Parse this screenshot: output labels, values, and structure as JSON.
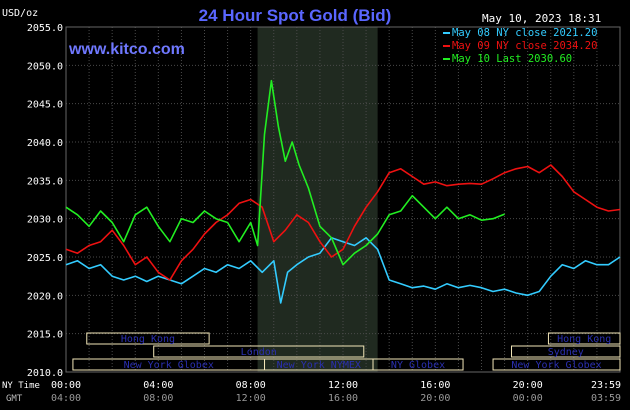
{
  "header": {
    "title": "24 Hour Spot Gold (Bid)",
    "timestamp": "May 10, 2023 18:31",
    "site": "www.kitco.com"
  },
  "colors": {
    "background": "#000000",
    "grid": "#4a4a4a",
    "title": "#5a66ff",
    "site": "#6f78ff",
    "text": "#ffffff",
    "session_box": "#f2e6b8",
    "session_text": "#2a2fb0",
    "highlight": "#202a20"
  },
  "legend": [
    {
      "label": "May 08 NY close 2021.20",
      "color": "#33ccff"
    },
    {
      "label": "May 09 NY close 2034.20",
      "color": "#ee1111"
    },
    {
      "label": "May 10 Last 2030.60",
      "color": "#22ee22"
    }
  ],
  "sessions": [
    {
      "label": "Hong Kong",
      "row": 0,
      "start": 0.9,
      "end": 6.2
    },
    {
      "label": "London",
      "row": 1,
      "start": 3.8,
      "end": 12.9
    },
    {
      "label": "New York Globex",
      "row": 2,
      "start": 0.3,
      "end": 8.6
    },
    {
      "label": "New York NYMEX",
      "row": 2,
      "start": 8.6,
      "end": 13.3
    },
    {
      "label": "NY Globex",
      "row": 2,
      "start": 13.3,
      "end": 17.2
    },
    {
      "label": "Hong Kong",
      "row": 0,
      "start": 20.9,
      "end": 24.0
    },
    {
      "label": "Sydney",
      "row": 1,
      "start": 19.3,
      "end": 24.0
    },
    {
      "label": "New York Globex",
      "row": 2,
      "start": 18.5,
      "end": 24.0
    }
  ],
  "chart_data": {
    "type": "line",
    "title": "24 Hour Spot Gold (Bid)",
    "ylabel": "USD/oz",
    "ylim": [
      2010,
      2055
    ],
    "xlim": [
      0,
      24
    ],
    "yticks": [
      "2010.0",
      "2015.0",
      "2020.0",
      "2025.0",
      "2030.0",
      "2035.0",
      "2040.0",
      "2045.0",
      "2050.0",
      "2055.0"
    ],
    "ny_time_label": "NY Time",
    "gmt_label": "GMT",
    "xticks_ny": [
      "00:00",
      "04:00",
      "08:00",
      "12:00",
      "16:00",
      "20:00",
      "23:59"
    ],
    "xticks_gmt": [
      "04:00",
      "08:00",
      "12:00",
      "16:00",
      "20:00",
      "00:00",
      "03:59"
    ],
    "grid": true,
    "legend_position": "top-right",
    "highlight_range": [
      8.3,
      13.5
    ],
    "series": [
      {
        "name": "May 08 NY close 2021.20",
        "color": "#33ccff",
        "x": [
          0,
          0.5,
          1.0,
          1.5,
          2.0,
          2.5,
          3.0,
          3.5,
          4.0,
          4.5,
          5.0,
          5.5,
          6.0,
          6.5,
          7.0,
          7.5,
          8.0,
          8.5,
          9.0,
          9.3,
          9.6,
          10.0,
          10.5,
          11.0,
          11.5,
          12.0,
          12.5,
          13.0,
          13.5,
          14.0,
          14.5,
          15.0,
          15.5,
          16.0,
          16.5,
          17.0,
          17.5,
          18.0,
          18.5,
          19.0,
          19.5,
          20.0,
          20.5,
          21.0,
          21.5,
          22.0,
          22.5,
          23.0,
          23.5,
          24.0
        ],
        "y": [
          2024.0,
          2024.5,
          2023.5,
          2024.0,
          2022.5,
          2022.0,
          2022.5,
          2021.8,
          2022.5,
          2022.0,
          2021.5,
          2022.5,
          2023.5,
          2023.0,
          2024.0,
          2023.5,
          2024.5,
          2023.0,
          2024.5,
          2019.0,
          2023.0,
          2024.0,
          2025.0,
          2025.5,
          2027.5,
          2027.0,
          2026.5,
          2027.5,
          2026.0,
          2022.0,
          2021.5,
          2021.0,
          2021.2,
          2020.8,
          2021.5,
          2021.0,
          2021.3,
          2021.0,
          2020.5,
          2020.8,
          2020.3,
          2020.0,
          2020.5,
          2022.5,
          2024.0,
          2023.5,
          2024.5,
          2024.0,
          2024.0,
          2025.0
        ]
      },
      {
        "name": "May 09 NY close 2034.20",
        "color": "#ee1111",
        "x": [
          0,
          0.5,
          1.0,
          1.5,
          2.0,
          2.5,
          3.0,
          3.5,
          4.0,
          4.5,
          5.0,
          5.5,
          6.0,
          6.5,
          7.0,
          7.5,
          8.0,
          8.5,
          9.0,
          9.5,
          10.0,
          10.5,
          11.0,
          11.5,
          12.0,
          12.5,
          13.0,
          13.5,
          14.0,
          14.5,
          15.0,
          15.5,
          16.0,
          16.5,
          17.0,
          17.5,
          18.0,
          18.5,
          19.0,
          19.5,
          20.0,
          20.5,
          21.0,
          21.5,
          22.0,
          22.5,
          23.0,
          23.5,
          24.0
        ],
        "y": [
          2026.0,
          2025.5,
          2026.5,
          2027.0,
          2028.5,
          2026.5,
          2024.0,
          2025.0,
          2023.0,
          2022.0,
          2024.5,
          2026.0,
          2028.0,
          2029.5,
          2030.5,
          2032.0,
          2032.5,
          2031.5,
          2027.0,
          2028.5,
          2030.5,
          2029.5,
          2027.0,
          2025.0,
          2026.0,
          2029.0,
          2031.5,
          2033.5,
          2036.0,
          2036.5,
          2035.5,
          2034.5,
          2034.8,
          2034.3,
          2034.5,
          2034.6,
          2034.5,
          2035.2,
          2036.0,
          2036.5,
          2036.8,
          2036.0,
          2037.0,
          2035.5,
          2033.5,
          2032.5,
          2031.5,
          2031.0,
          2031.2
        ]
      },
      {
        "name": "May 10 Last 2030.60",
        "color": "#22ee22",
        "x": [
          0,
          0.5,
          1.0,
          1.5,
          2.0,
          2.5,
          3.0,
          3.5,
          4.0,
          4.5,
          5.0,
          5.5,
          6.0,
          6.5,
          7.0,
          7.5,
          8.0,
          8.3,
          8.6,
          8.9,
          9.2,
          9.5,
          9.8,
          10.1,
          10.5,
          11.0,
          11.5,
          12.0,
          12.5,
          13.0,
          13.5,
          14.0,
          14.5,
          15.0,
          15.5,
          16.0,
          16.5,
          17.0,
          17.5,
          18.0,
          18.5,
          19.0
        ],
        "y": [
          2031.5,
          2030.5,
          2029.0,
          2031.0,
          2029.5,
          2027.0,
          2030.5,
          2031.5,
          2029.0,
          2027.0,
          2030.0,
          2029.5,
          2031.0,
          2030.0,
          2029.5,
          2027.0,
          2029.5,
          2026.5,
          2041.0,
          2048.0,
          2042.0,
          2037.5,
          2040.0,
          2037.0,
          2034.0,
          2029.0,
          2027.5,
          2024.0,
          2025.5,
          2026.5,
          2028.0,
          2030.5,
          2031.0,
          2033.0,
          2031.5,
          2030.0,
          2031.5,
          2030.0,
          2030.5,
          2029.8,
          2030.0,
          2030.6
        ]
      }
    ]
  }
}
